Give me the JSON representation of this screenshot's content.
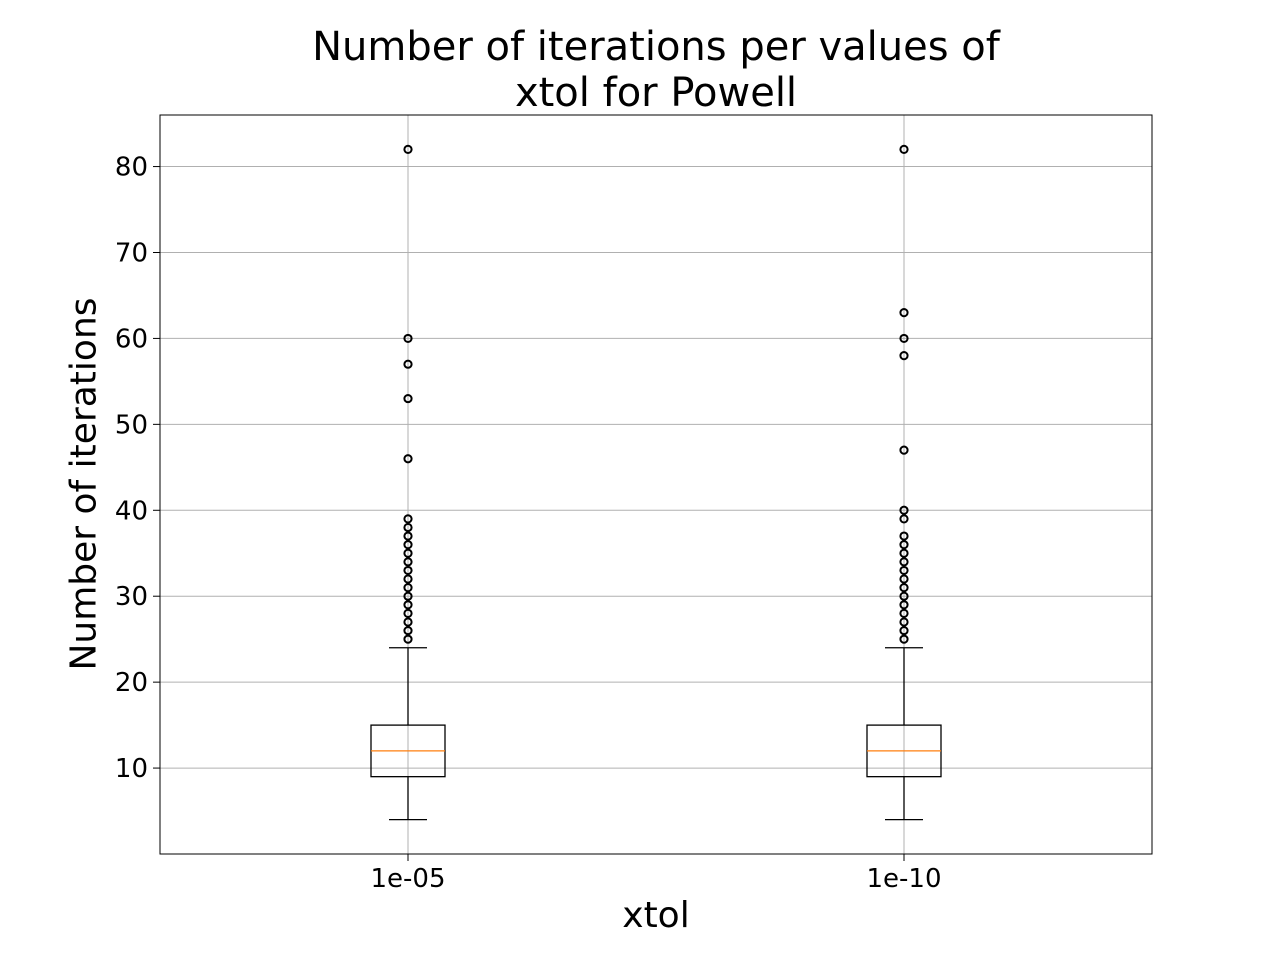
{
  "chart_data": {
    "type": "box",
    "title": [
      "Number of iterations per values of",
      "xtol for Powell"
    ],
    "xlabel": "xtol",
    "ylabel": "Number of iterations",
    "categories": [
      "1e-05",
      "1e-10"
    ],
    "ylim": [
      0,
      86
    ],
    "yticks": [
      10,
      20,
      30,
      40,
      50,
      60,
      70,
      80
    ],
    "grid": true,
    "boxes": [
      {
        "category": "1e-05",
        "whisker_low": 4,
        "q1": 9,
        "median": 12,
        "q3": 15,
        "whisker_high": 24,
        "outliers": [
          25,
          26,
          27,
          28,
          29,
          30,
          31,
          32,
          33,
          34,
          35,
          36,
          37,
          38,
          39,
          46,
          53,
          57,
          60,
          82
        ]
      },
      {
        "category": "1e-10",
        "whisker_low": 4,
        "q1": 9,
        "median": 12,
        "q3": 15,
        "whisker_high": 24,
        "outliers": [
          25,
          26,
          27,
          28,
          29,
          30,
          31,
          32,
          33,
          34,
          35,
          36,
          37,
          39,
          40,
          47,
          58,
          60,
          63,
          82
        ]
      }
    ],
    "colors": {
      "box": "#000000",
      "median": "#ff7f0e",
      "grid": "#b0b0b0",
      "outlier": "#000000"
    }
  }
}
